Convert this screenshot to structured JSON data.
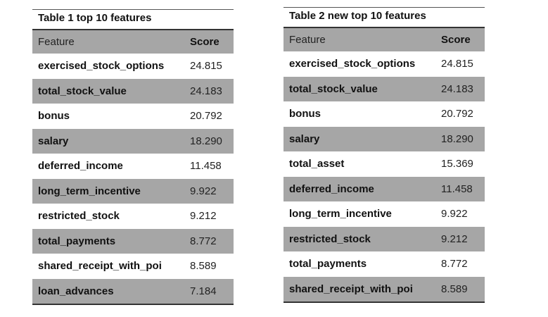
{
  "table1": {
    "caption": "Table 1 top 10 features",
    "headers": [
      "Feature",
      "Score"
    ],
    "rows": [
      [
        "exercised_stock_options",
        "24.815"
      ],
      [
        "total_stock_value",
        "24.183"
      ],
      [
        "bonus",
        "20.792"
      ],
      [
        "salary",
        "18.290"
      ],
      [
        "deferred_income",
        "11.458"
      ],
      [
        "long_term_incentive",
        "9.922"
      ],
      [
        "restricted_stock",
        "9.212"
      ],
      [
        "total_payments",
        "8.772"
      ],
      [
        "shared_receipt_with_poi",
        "8.589"
      ],
      [
        "loan_advances",
        "7.184"
      ]
    ]
  },
  "table2": {
    "caption": "Table 2 new top 10 features",
    "headers": [
      "Feature",
      "Score"
    ],
    "rows": [
      [
        "exercised_stock_options",
        "24.815"
      ],
      [
        "total_stock_value",
        "24.183"
      ],
      [
        "bonus",
        "20.792"
      ],
      [
        "salary",
        "18.290"
      ],
      [
        "total_asset",
        "15.369"
      ],
      [
        "deferred_income",
        "11.458"
      ],
      [
        "long_term_incentive",
        "9.922"
      ],
      [
        "restricted_stock",
        "9.212"
      ],
      [
        "total_payments",
        "8.772"
      ],
      [
        "shared_receipt_with_poi",
        "8.589"
      ]
    ]
  },
  "colors": {
    "shade": "#a6a6a6",
    "rule": "#333333"
  }
}
